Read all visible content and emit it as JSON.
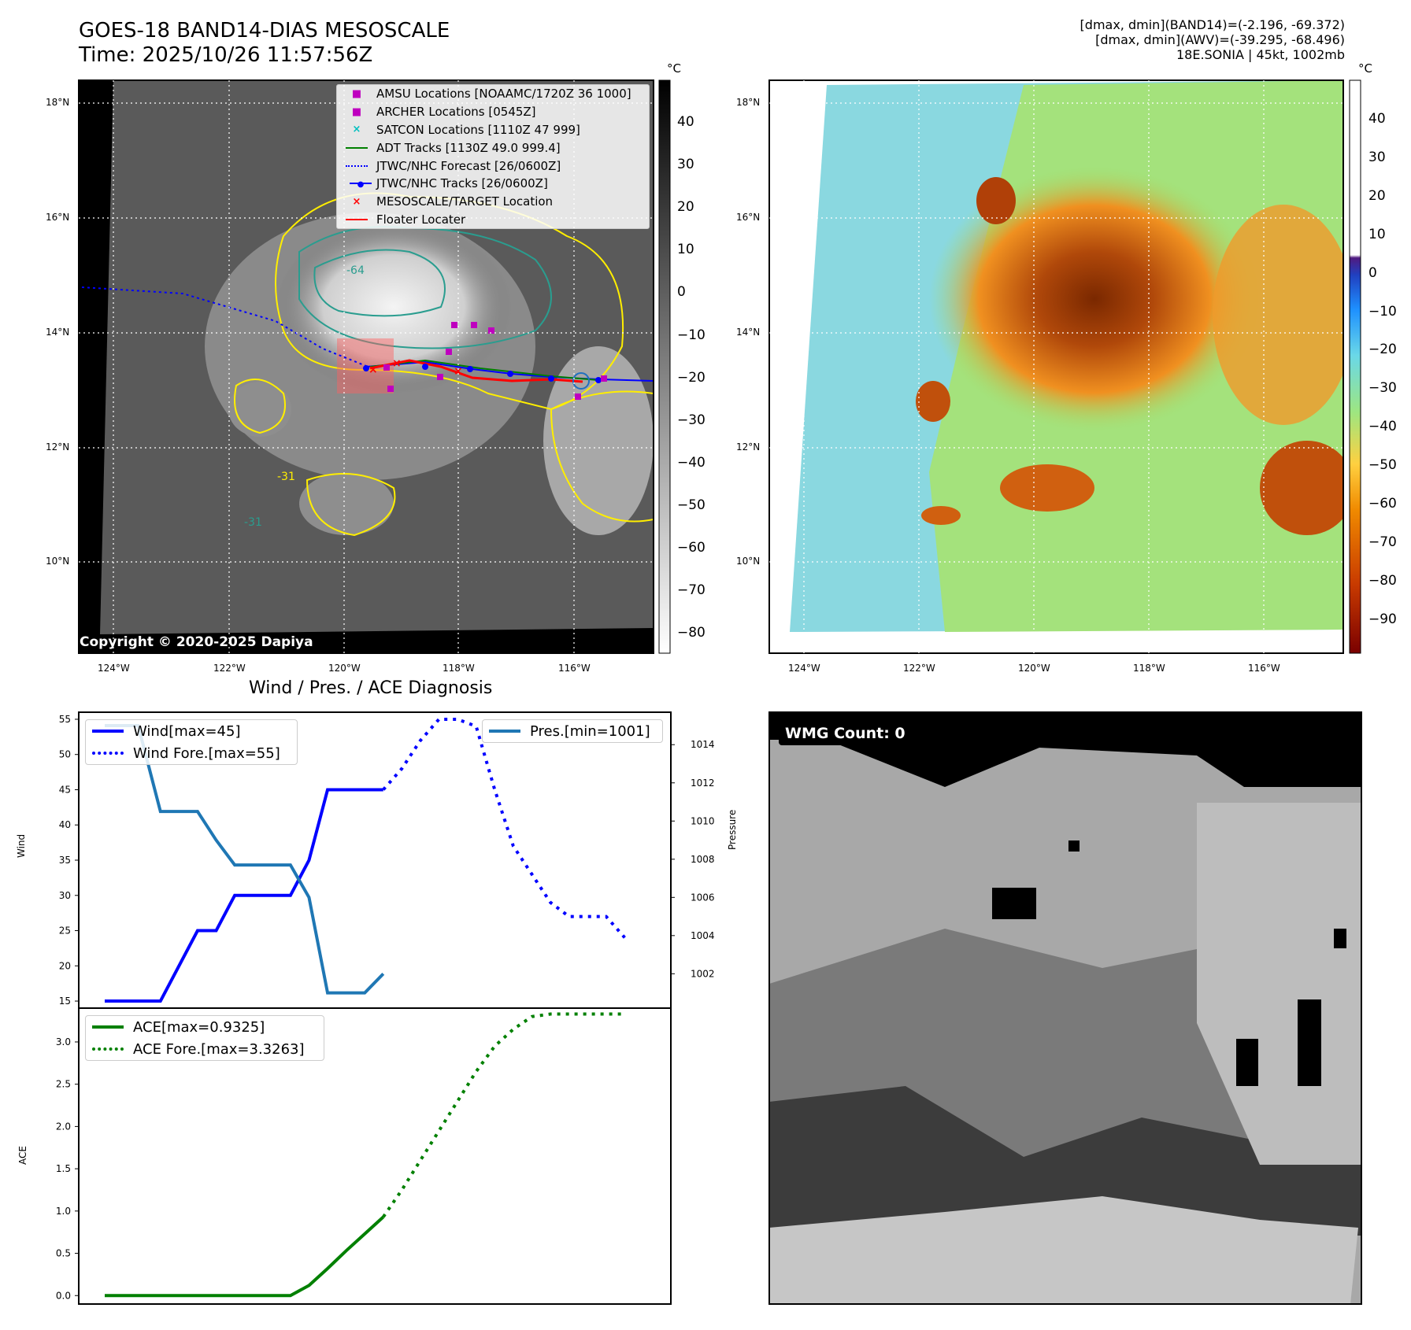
{
  "header": {
    "title_line1": "GOES-18 BAND14-DIAS MESOSCALE",
    "title_line2": "Time: 2025/10/26 11:57:56Z",
    "stats_line1": "[dmax, dmin](BAND14)=(-2.196, -69.372)",
    "stats_line2": "[dmax, dmin](AWV)=(-39.295, -68.496)",
    "stats_line3": "18E.SONIA | 45kt, 1002mb"
  },
  "map_axes": {
    "lat_labels": [
      "18°N",
      "16°N",
      "14°N",
      "12°N",
      "10°N"
    ],
    "lon_labels": [
      "124°W",
      "122°W",
      "120°W",
      "118°W",
      "116°W"
    ]
  },
  "ir_panel": {
    "colorbar_unit": "°C",
    "colorbar_ticks": [
      "40",
      "30",
      "20",
      "10",
      "0",
      "−10",
      "−20",
      "−30",
      "−40",
      "−50",
      "−60",
      "−70",
      "−80"
    ],
    "copyright": "Copyright © 2020-2025 Dapiya",
    "contour_labels": [
      "-64",
      "-31",
      "-31"
    ],
    "legend": [
      {
        "label": "AMSU Locations [NOAAMC/1720Z 36 1000]",
        "marker": "■",
        "color": "#bf00bf"
      },
      {
        "label": "ARCHER Locations [0545Z]",
        "marker": "■",
        "color": "#bf00bf"
      },
      {
        "label": "SATCON Locations [1110Z 47 999]",
        "marker": "×",
        "color": "#00bfbf"
      },
      {
        "label": "ADT Tracks [1130Z 49.0 999.4]",
        "marker": "line",
        "color": "#008000"
      },
      {
        "label": "JTWC/NHC Forecast [26/0600Z]",
        "marker": "dotted",
        "color": "#0000ff"
      },
      {
        "label": "JTWC/NHC Tracks [26/0600Z]",
        "marker": "dotline",
        "color": "#0000ff"
      },
      {
        "label": "MESOSCALE/TARGET Location",
        "marker": "×",
        "color": "#ff0000"
      },
      {
        "label": "Floater Locater",
        "marker": "line",
        "color": "#ff0000"
      }
    ]
  },
  "awv_panel": {
    "colorbar_unit": "°C",
    "colorbar_ticks": [
      "40",
      "30",
      "20",
      "10",
      "0",
      "−10",
      "−20",
      "−30",
      "−40",
      "−50",
      "−60",
      "−70",
      "−80",
      "−90"
    ]
  },
  "diagnosis": {
    "title": "Wind / Pres. / ACE Diagnosis",
    "wind_ylabel": "Wind",
    "pres_ylabel": "Pressure",
    "ace_ylabel": "ACE",
    "legend_wind": "Wind[max=45]",
    "legend_wind_fore": "Wind Fore.[max=55]",
    "legend_pres": "Pres.[min=1001]",
    "legend_ace": "ACE[max=0.9325]",
    "legend_ace_fore": "ACE Fore.[max=3.3263]",
    "wmg_label": "WMG Count: 0"
  },
  "chart_data": [
    {
      "type": "line",
      "title": "Wind / Pres. / ACE Diagnosis",
      "ylabel": "Wind",
      "ylim": [
        14,
        56
      ],
      "yticks": [
        15,
        20,
        25,
        30,
        35,
        40,
        45,
        50,
        55
      ],
      "y2label": "Pressure",
      "y2lim": [
        1000.2,
        1015.7
      ],
      "y2ticks": [
        1002,
        1004,
        1006,
        1008,
        1010,
        1012,
        1014
      ],
      "x": [
        0,
        1,
        2,
        3,
        4,
        5,
        6,
        7,
        8,
        9,
        10,
        11,
        12,
        13,
        14,
        15,
        16,
        17,
        18,
        19,
        20,
        21,
        22,
        23,
        24,
        25,
        26,
        27,
        28,
        29
      ],
      "series": [
        {
          "name": "Wind[max=45]",
          "axis": "left",
          "color": "#0000ff",
          "style": "solid",
          "x": [
            0,
            3,
            5,
            6,
            7,
            8,
            9,
            10,
            11,
            12,
            13,
            14,
            15
          ],
          "values": [
            15,
            15,
            25,
            25,
            30,
            30,
            30,
            30,
            35,
            45,
            45,
            45,
            45
          ]
        },
        {
          "name": "Wind Fore.[max=55]",
          "axis": "left",
          "color": "#0000ff",
          "style": "dotted",
          "x": [
            15,
            16,
            17,
            18,
            19,
            20,
            21,
            22,
            23,
            24,
            25,
            26,
            27,
            28
          ],
          "values": [
            45,
            48,
            52,
            55,
            55,
            54,
            45,
            37,
            33,
            29,
            27,
            27,
            27,
            24
          ]
        },
        {
          "name": "Pres.[min=1001]",
          "axis": "right",
          "color": "#1f77b4",
          "style": "solid",
          "x": [
            0,
            0.2,
            1,
            1.8,
            3,
            4,
            5,
            6,
            7,
            8,
            9,
            10,
            11,
            12,
            13,
            14,
            15
          ],
          "values": [
            1015,
            1015,
            1015,
            1015,
            1010.5,
            1010.5,
            1010.5,
            1009,
            1007.7,
            1007.7,
            1007.7,
            1007.7,
            1006,
            1001,
            1001,
            1001,
            1002
          ]
        }
      ]
    },
    {
      "type": "line",
      "ylabel": "ACE",
      "ylim": [
        -0.1,
        3.4
      ],
      "yticks": [
        0.0,
        0.5,
        1.0,
        1.5,
        2.0,
        2.5,
        3.0
      ],
      "series": [
        {
          "name": "ACE[max=0.9325]",
          "color": "#008000",
          "style": "solid",
          "x": [
            0,
            1,
            2,
            3,
            4,
            5,
            6,
            7,
            8,
            9,
            10,
            11,
            12,
            13,
            14,
            15
          ],
          "values": [
            0,
            0,
            0,
            0,
            0,
            0,
            0,
            0,
            0,
            0,
            0.0,
            0.12,
            0.32,
            0.53,
            0.73,
            0.93
          ]
        },
        {
          "name": "ACE Fore.[max=3.3263]",
          "color": "#008000",
          "style": "dotted",
          "x": [
            15,
            16,
            17,
            18,
            19,
            20,
            21,
            22,
            23,
            24,
            25,
            26,
            27,
            28
          ],
          "values": [
            0.93,
            1.25,
            1.6,
            1.95,
            2.3,
            2.65,
            2.95,
            3.15,
            3.3,
            3.33,
            3.33,
            3.33,
            3.33,
            3.33
          ]
        }
      ]
    }
  ]
}
